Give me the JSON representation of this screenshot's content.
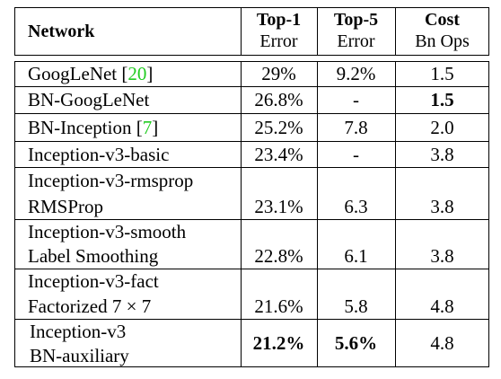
{
  "table": {
    "header": [
      {
        "title": "Network"
      },
      {
        "title": "Top-1",
        "subtitle": "Error"
      },
      {
        "title": "Top-5",
        "subtitle": "Error"
      },
      {
        "title": "Cost",
        "subtitle": "Bn Ops"
      }
    ],
    "rows": [
      {
        "network": [
          "GoogLeNet"
        ],
        "ref": {
          "open": "[",
          "number": "20",
          "close": "]"
        },
        "top1": "29%",
        "top5": "9.2%",
        "cost": "1.5",
        "bold": []
      },
      {
        "network": [
          "BN-GoogLeNet"
        ],
        "top1": "26.8%",
        "top5": "-",
        "cost": "1.5",
        "bold": [
          "cost"
        ]
      },
      {
        "network": [
          "BN-Inception"
        ],
        "ref": {
          "open": "[",
          "number": "7",
          "close": "]"
        },
        "top1": "25.2%",
        "top5": "7.8",
        "cost": "2.0",
        "bold": []
      },
      {
        "network": [
          "Inception-v3-basic"
        ],
        "top1": "23.4%",
        "top5": "-",
        "cost": "3.8",
        "bold": []
      },
      {
        "network": [
          "Inception-v3-rmsprop",
          "RMSProp"
        ],
        "top1": "23.1%",
        "top5": "6.3",
        "cost": "3.8",
        "bold": []
      },
      {
        "network": [
          "Inception-v3-smooth",
          "Label Smoothing"
        ],
        "top1": "22.8%",
        "top5": "6.1",
        "cost": "3.8",
        "bold": []
      },
      {
        "network": [
          "Inception-v3-fact",
          "Factorized 7 × 7"
        ],
        "top1": "21.6%",
        "top5": "5.8",
        "cost": "4.8",
        "bold": []
      },
      {
        "network": [
          "Inception-v3",
          "BN-auxiliary"
        ],
        "top1": "21.2%",
        "top5": "5.6%",
        "cost": "4.8",
        "bold": [
          "top1",
          "top5"
        ]
      }
    ]
  }
}
